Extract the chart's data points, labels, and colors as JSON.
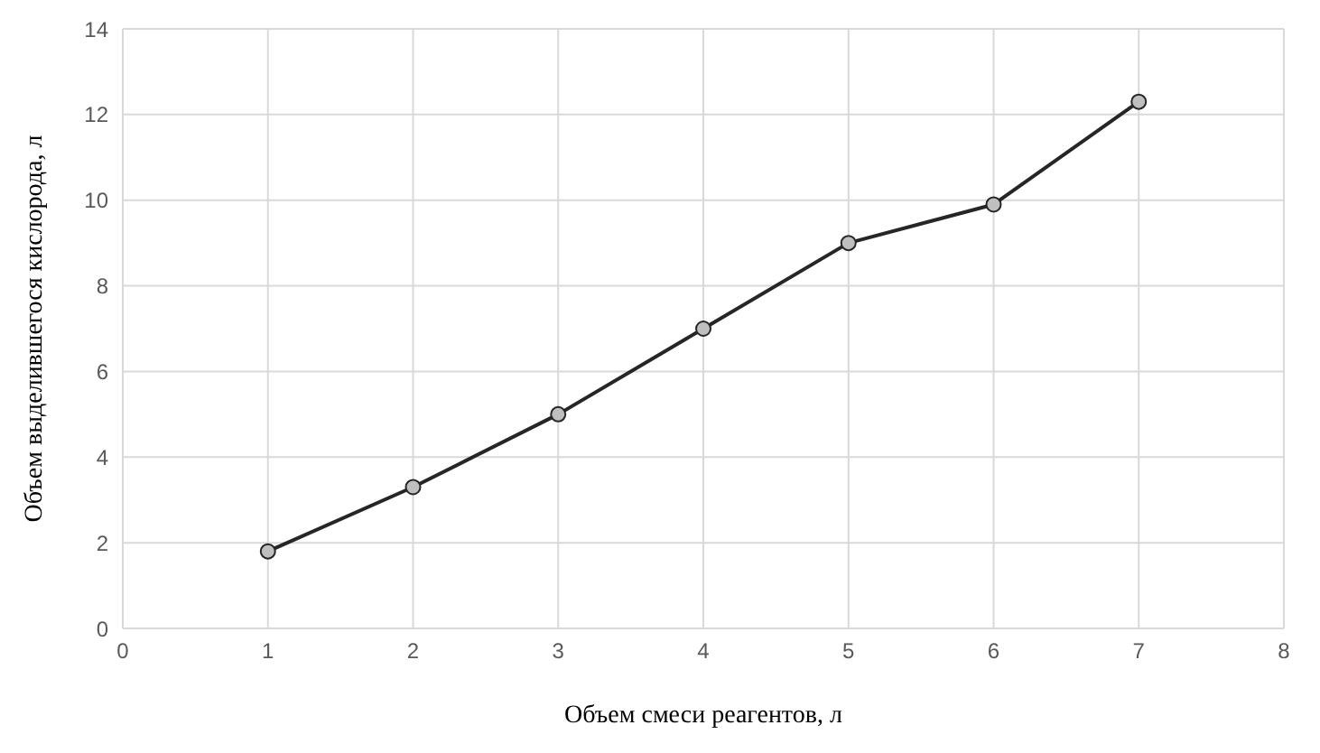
{
  "chart_data": {
    "type": "line",
    "xlabel": "Объем смеси реагентов, л",
    "ylabel": "Объем выделившегося кислорода, л",
    "x": [
      1,
      2,
      3,
      4,
      5,
      6,
      7
    ],
    "series": [
      {
        "color": "#262626",
        "values": [
          1.8,
          3.3,
          5.0,
          7.0,
          9.0,
          9.9,
          12.3
        ]
      }
    ],
    "xlim": [
      0,
      8
    ],
    "xticks": [
      0,
      1,
      2,
      3,
      4,
      5,
      6,
      7,
      8
    ],
    "ylim": [
      0,
      14
    ],
    "yticks": [
      0,
      2,
      4,
      6,
      8,
      10,
      12,
      14
    ],
    "grid": true,
    "marker": "circle",
    "line_style": "solid"
  }
}
